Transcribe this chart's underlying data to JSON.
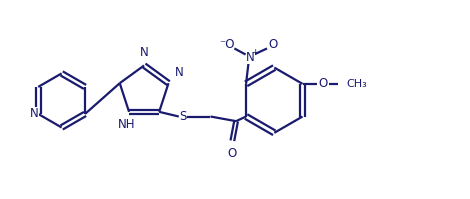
{
  "bg_color": "#ffffff",
  "line_color": "#1a1a6e",
  "bond_width": 1.6,
  "font_size": 8.5,
  "figsize": [
    4.7,
    1.99
  ],
  "dpi": 100,
  "xlim": [
    0,
    10
  ],
  "ylim": [
    0,
    4.24
  ]
}
